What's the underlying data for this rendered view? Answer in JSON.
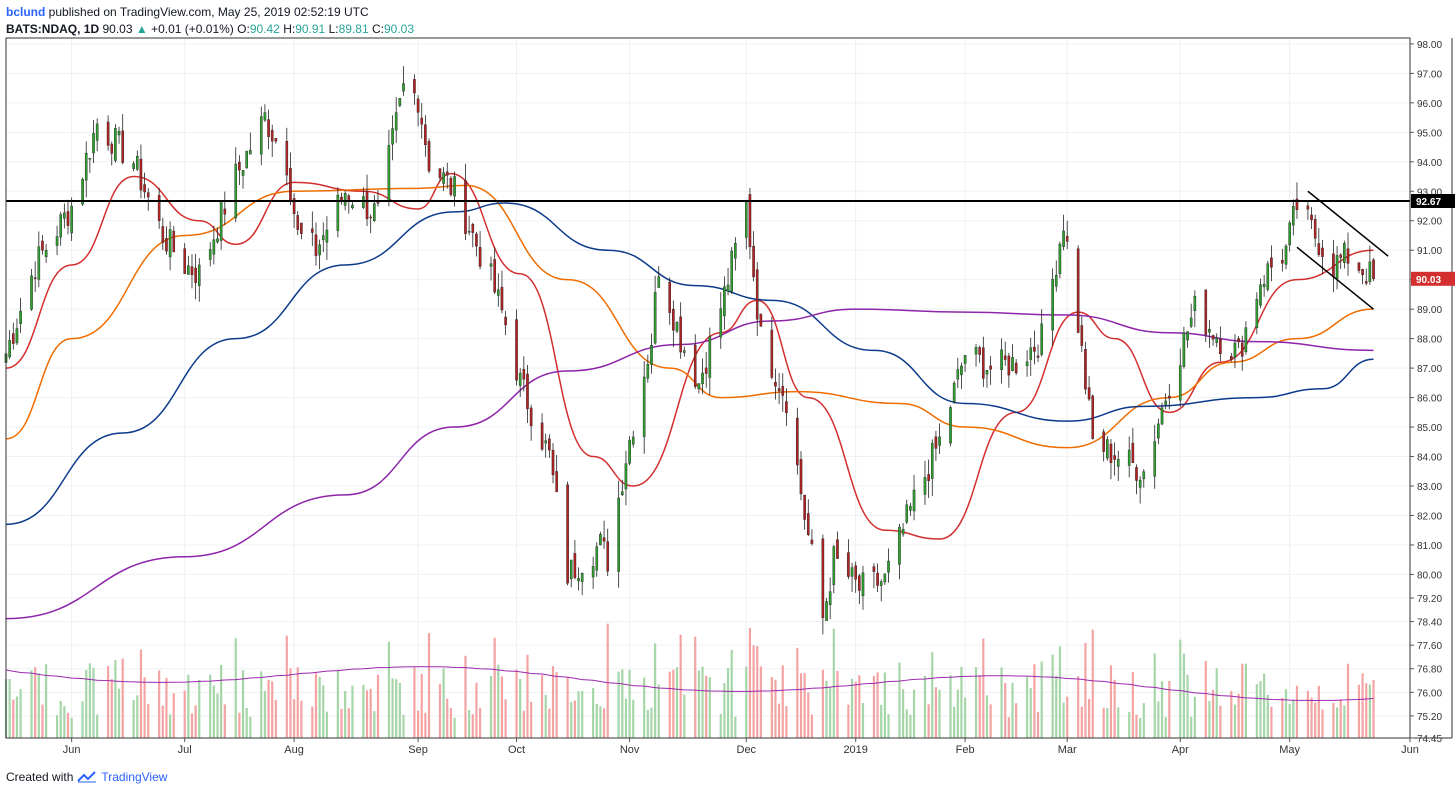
{
  "header": {
    "user": "bclund",
    "published": "published on TradingView.com, May 25, 2019 02:52:19 UTC",
    "symbol": "BATS:NDAQ, 1D",
    "last": "90.03",
    "change_arrow": "▲",
    "change": "+0.01 (+0.01%)",
    "o_label": "O:",
    "o": "90.42",
    "h_label": "H:",
    "h": "90.91",
    "l_label": "L:",
    "l": "89.81",
    "c_label": "C:",
    "c": "90.03"
  },
  "footer": {
    "created_with": "Created with",
    "brand": "TradingView"
  },
  "colors": {
    "up": "#2e9e2e",
    "down": "#b22222",
    "vol_up": "#a5d6a7",
    "vol_down": "#f4a3a3",
    "ma20": "#d32f2f",
    "ma50": "#ef6c00",
    "ma100": "#0d3b8c",
    "ma200": "#8e24aa",
    "vol_ma": "#9c27b0"
  },
  "chart_data": {
    "type": "candlestick",
    "symbol": "BATS:NDAQ",
    "interval": "1D",
    "x_ticks": [
      "Jun",
      "Jul",
      "Aug",
      "Sep",
      "Oct",
      "Nov",
      "Dec",
      "2019",
      "Feb",
      "Mar",
      "Apr",
      "May",
      "Jun"
    ],
    "y_ticks": [
      "98.00",
      "97.00",
      "96.00",
      "95.00",
      "94.00",
      "93.00",
      "92.00",
      "91.00",
      "90.00",
      "89.00",
      "88.00",
      "87.00",
      "86.00",
      "85.00",
      "84.00",
      "83.00",
      "82.00",
      "81.00",
      "80.00",
      "79.20",
      "78.40",
      "77.60",
      "76.80",
      "76.00",
      "75.20",
      "74.45"
    ],
    "ylim": [
      74.45,
      98.2
    ],
    "resistance_label": "92.67",
    "resistance_value": 92.67,
    "last_price_label": "90.03",
    "last_price_value": 90.03,
    "price_anchors": [
      {
        "date": "2018-05-14",
        "price": 87.5
      },
      {
        "date": "2018-05-22",
        "price": 90.5
      },
      {
        "date": "2018-06-01",
        "price": 92.5
      },
      {
        "date": "2018-06-08",
        "price": 95.3
      },
      {
        "date": "2018-06-18",
        "price": 94.0
      },
      {
        "date": "2018-06-26",
        "price": 91.5
      },
      {
        "date": "2018-07-02",
        "price": 90.5
      },
      {
        "date": "2018-07-06",
        "price": 90.2
      },
      {
        "date": "2018-07-16",
        "price": 93.5
      },
      {
        "date": "2018-07-24",
        "price": 95.5
      },
      {
        "date": "2018-07-30",
        "price": 94.0
      },
      {
        "date": "2018-08-02",
        "price": 91.5
      },
      {
        "date": "2018-08-07",
        "price": 91.0
      },
      {
        "date": "2018-08-15",
        "price": 93.0
      },
      {
        "date": "2018-08-24",
        "price": 92.2
      },
      {
        "date": "2018-08-31",
        "price": 96.5
      },
      {
        "date": "2018-09-04",
        "price": 96.2
      },
      {
        "date": "2018-09-07",
        "price": 94.0
      },
      {
        "date": "2018-09-14",
        "price": 93.0
      },
      {
        "date": "2018-09-24",
        "price": 90.0
      },
      {
        "date": "2018-09-28",
        "price": 88.5
      },
      {
        "date": "2018-10-02",
        "price": 86.5
      },
      {
        "date": "2018-10-10",
        "price": 84.0
      },
      {
        "date": "2018-10-15",
        "price": 80.0
      },
      {
        "date": "2018-10-19",
        "price": 80.5
      },
      {
        "date": "2018-10-24",
        "price": 81.0
      },
      {
        "date": "2018-10-26",
        "price": 80.5
      },
      {
        "date": "2018-10-31",
        "price": 84.0
      },
      {
        "date": "2018-11-07",
        "price": 88.0
      },
      {
        "date": "2018-11-09",
        "price": 90.5
      },
      {
        "date": "2018-11-15",
        "price": 88.0
      },
      {
        "date": "2018-11-20",
        "price": 86.5
      },
      {
        "date": "2018-11-27",
        "price": 89.5
      },
      {
        "date": "2018-12-03",
        "price": 92.5
      },
      {
        "date": "2018-12-07",
        "price": 88.0
      },
      {
        "date": "2018-12-14",
        "price": 86.0
      },
      {
        "date": "2018-12-19",
        "price": 82.0
      },
      {
        "date": "2018-12-24",
        "price": 78.5
      },
      {
        "date": "2018-12-27",
        "price": 80.5
      },
      {
        "date": "2019-01-03",
        "price": 79.5
      },
      {
        "date": "2019-01-10",
        "price": 79.8
      },
      {
        "date": "2019-01-18",
        "price": 82.5
      },
      {
        "date": "2019-01-25",
        "price": 84.5
      },
      {
        "date": "2019-02-01",
        "price": 87.5
      },
      {
        "date": "2019-02-08",
        "price": 87.0
      },
      {
        "date": "2019-02-15",
        "price": 87.2
      },
      {
        "date": "2019-02-22",
        "price": 88.0
      },
      {
        "date": "2019-02-28",
        "price": 92.0
      },
      {
        "date": "2019-03-04",
        "price": 88.5
      },
      {
        "date": "2019-03-08",
        "price": 84.5
      },
      {
        "date": "2019-03-15",
        "price": 84.0
      },
      {
        "date": "2019-03-22",
        "price": 83.5
      },
      {
        "date": "2019-03-29",
        "price": 86.5
      },
      {
        "date": "2019-04-05",
        "price": 89.0
      },
      {
        "date": "2019-04-12",
        "price": 88.0
      },
      {
        "date": "2019-04-17",
        "price": 87.5
      },
      {
        "date": "2019-04-23",
        "price": 90.0
      },
      {
        "date": "2019-04-30",
        "price": 91.0
      },
      {
        "date": "2019-05-03",
        "price": 92.5
      },
      {
        "date": "2019-05-08",
        "price": 91.5
      },
      {
        "date": "2019-05-13",
        "price": 90.5
      },
      {
        "date": "2019-05-17",
        "price": 90.8
      },
      {
        "date": "2019-05-24",
        "price": 90.03
      }
    ],
    "moving_averages": [
      {
        "period": 20,
        "color": "#d32f2f",
        "points": [
          {
            "date": "2018-05-14",
            "value": 87.0
          },
          {
            "date": "2018-06-01",
            "value": 90.5
          },
          {
            "date": "2018-06-18",
            "value": 93.5
          },
          {
            "date": "2018-07-06",
            "value": 92.0
          },
          {
            "date": "2018-07-16",
            "value": 91.2
          },
          {
            "date": "2018-08-01",
            "value": 93.3
          },
          {
            "date": "2018-08-20",
            "value": 93.0
          },
          {
            "date": "2018-09-04",
            "value": 92.4
          },
          {
            "date": "2018-09-13",
            "value": 93.6
          },
          {
            "date": "2018-10-02",
            "value": 90.2
          },
          {
            "date": "2018-10-22",
            "value": 84.0
          },
          {
            "date": "2018-11-02",
            "value": 83.0
          },
          {
            "date": "2018-11-26",
            "value": 88.2
          },
          {
            "date": "2018-12-06",
            "value": 89.3
          },
          {
            "date": "2018-12-20",
            "value": 86.0
          },
          {
            "date": "2019-01-10",
            "value": 81.5
          },
          {
            "date": "2019-01-25",
            "value": 81.2
          },
          {
            "date": "2019-02-15",
            "value": 85.5
          },
          {
            "date": "2019-03-04",
            "value": 88.9
          },
          {
            "date": "2019-03-14",
            "value": 88.0
          },
          {
            "date": "2019-03-29",
            "value": 85.5
          },
          {
            "date": "2019-04-12",
            "value": 87.2
          },
          {
            "date": "2019-05-03",
            "value": 90.0
          },
          {
            "date": "2019-05-24",
            "value": 91.0
          }
        ]
      },
      {
        "period": 50,
        "color": "#ef6c00",
        "points": [
          {
            "date": "2018-05-14",
            "value": 84.6
          },
          {
            "date": "2018-06-01",
            "value": 88.0
          },
          {
            "date": "2018-07-02",
            "value": 91.5
          },
          {
            "date": "2018-08-01",
            "value": 93.0
          },
          {
            "date": "2018-09-04",
            "value": 93.1
          },
          {
            "date": "2018-09-17",
            "value": 93.2
          },
          {
            "date": "2018-10-15",
            "value": 90.0
          },
          {
            "date": "2018-11-12",
            "value": 87.0
          },
          {
            "date": "2018-11-26",
            "value": 86.0
          },
          {
            "date": "2018-12-17",
            "value": 86.2
          },
          {
            "date": "2019-01-14",
            "value": 85.8
          },
          {
            "date": "2019-02-01",
            "value": 85.0
          },
          {
            "date": "2019-03-01",
            "value": 84.3
          },
          {
            "date": "2019-03-29",
            "value": 86.0
          },
          {
            "date": "2019-04-15",
            "value": 87.2
          },
          {
            "date": "2019-05-03",
            "value": 88.0
          },
          {
            "date": "2019-05-24",
            "value": 89.0
          }
        ]
      },
      {
        "period": 100,
        "color": "#0d3b8c",
        "points": [
          {
            "date": "2018-05-14",
            "value": 81.7
          },
          {
            "date": "2018-06-15",
            "value": 84.8
          },
          {
            "date": "2018-07-16",
            "value": 88.0
          },
          {
            "date": "2018-08-15",
            "value": 90.5
          },
          {
            "date": "2018-09-14",
            "value": 92.3
          },
          {
            "date": "2018-09-28",
            "value": 92.6
          },
          {
            "date": "2018-10-26",
            "value": 91.0
          },
          {
            "date": "2018-11-19",
            "value": 89.8
          },
          {
            "date": "2018-12-10",
            "value": 89.3
          },
          {
            "date": "2019-01-07",
            "value": 87.6
          },
          {
            "date": "2019-02-01",
            "value": 85.8
          },
          {
            "date": "2019-03-01",
            "value": 85.2
          },
          {
            "date": "2019-03-22",
            "value": 85.7
          },
          {
            "date": "2019-04-22",
            "value": 86.0
          },
          {
            "date": "2019-05-10",
            "value": 86.3
          },
          {
            "date": "2019-05-24",
            "value": 87.3
          }
        ]
      },
      {
        "period": 200,
        "color": "#8e24aa",
        "points": [
          {
            "date": "2018-05-14",
            "value": 78.5
          },
          {
            "date": "2018-07-02",
            "value": 80.6
          },
          {
            "date": "2018-08-15",
            "value": 82.7
          },
          {
            "date": "2018-09-14",
            "value": 85.0
          },
          {
            "date": "2018-10-15",
            "value": 86.9
          },
          {
            "date": "2018-11-15",
            "value": 87.8
          },
          {
            "date": "2018-12-10",
            "value": 88.6
          },
          {
            "date": "2019-01-02",
            "value": 89.0
          },
          {
            "date": "2019-02-01",
            "value": 88.9
          },
          {
            "date": "2019-03-01",
            "value": 88.8
          },
          {
            "date": "2019-03-29",
            "value": 88.2
          },
          {
            "date": "2019-04-22",
            "value": 87.9
          },
          {
            "date": "2019-05-24",
            "value": 87.6
          }
        ]
      }
    ],
    "channel_upper": [
      {
        "date": "2019-05-06",
        "price": 93.0
      },
      {
        "date": "2019-05-28",
        "price": 90.8
      }
    ],
    "channel_lower": [
      {
        "date": "2019-05-03",
        "price": 91.1
      },
      {
        "date": "2019-05-24",
        "price": 89.0
      }
    ]
  }
}
